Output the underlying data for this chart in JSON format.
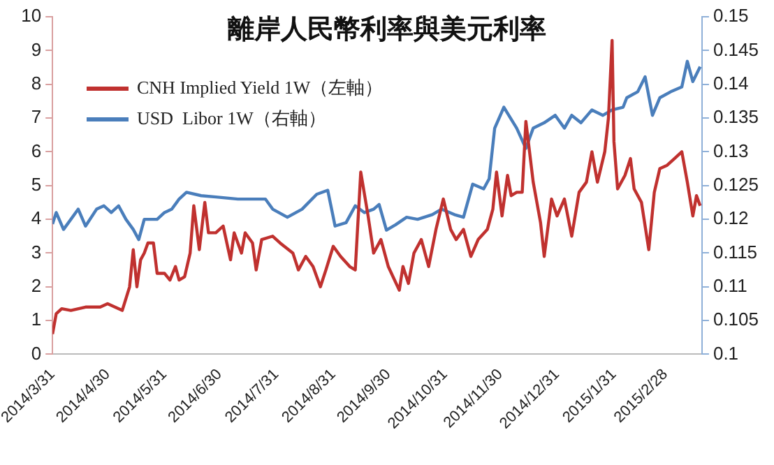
{
  "chart_data": {
    "type": "line",
    "title": "離岸人民幣利率與美元利率",
    "legend": "top left",
    "grid": false,
    "marker": "none",
    "line_style": "solid",
    "xlim": [
      "2014-03-31",
      "2015-03-20"
    ],
    "xticks": [
      {
        "value": "2014-03-31",
        "label": "2014/3/31"
      },
      {
        "value": "2014-04-30",
        "label": "2014/4/30"
      },
      {
        "value": "2014-05-31",
        "label": "2014/5/31"
      },
      {
        "value": "2014-06-30",
        "label": "2014/6/30"
      },
      {
        "value": "2014-07-31",
        "label": "2014/7/31"
      },
      {
        "value": "2014-08-31",
        "label": "2014/8/31"
      },
      {
        "value": "2014-09-30",
        "label": "2014/9/30"
      },
      {
        "value": "2014-10-31",
        "label": "2014/10/31"
      },
      {
        "value": "2014-11-30",
        "label": "2014/11/30"
      },
      {
        "value": "2014-12-31",
        "label": "2014/12/31"
      },
      {
        "value": "2015-01-31",
        "label": "2015/1/31"
      },
      {
        "value": "2015-02-28",
        "label": "2015/2/28"
      }
    ],
    "ylim": [
      0,
      10
    ],
    "yticks": [
      0,
      1,
      2,
      3,
      4,
      5,
      6,
      7,
      8,
      9,
      10
    ],
    "y2lim": [
      0.1,
      0.15
    ],
    "y2ticks": [
      0.1,
      0.105,
      0.11,
      0.115,
      0.12,
      0.125,
      0.13,
      0.135,
      0.14,
      0.145,
      0.15
    ],
    "series": [
      {
        "name": "CNH Implied Yield 1W（左軸）",
        "color": "#c0312f",
        "x": [
          "2014-03-31",
          "2014-04-02",
          "2014-04-05",
          "2014-04-10",
          "2014-04-18",
          "2014-04-26",
          "2014-04-30",
          "2014-05-08",
          "2014-05-12",
          "2014-05-14",
          "2014-05-16",
          "2014-05-18",
          "2014-05-20",
          "2014-05-22",
          "2014-05-25",
          "2014-05-27",
          "2014-05-31",
          "2014-06-03",
          "2014-06-06",
          "2014-06-08",
          "2014-06-11",
          "2014-06-14",
          "2014-06-16",
          "2014-06-19",
          "2014-06-22",
          "2014-06-24",
          "2014-06-28",
          "2014-07-02",
          "2014-07-06",
          "2014-07-08",
          "2014-07-12",
          "2014-07-14",
          "2014-07-18",
          "2014-07-20",
          "2014-07-23",
          "2014-07-29",
          "2014-08-02",
          "2014-08-09",
          "2014-08-12",
          "2014-08-16",
          "2014-08-20",
          "2014-08-24",
          "2014-08-27",
          "2014-08-31",
          "2014-09-04",
          "2014-09-09",
          "2014-09-12",
          "2014-09-15",
          "2014-09-19",
          "2014-09-22",
          "2014-09-26",
          "2014-09-30",
          "2014-10-06",
          "2014-10-08",
          "2014-10-11",
          "2014-10-14",
          "2014-10-18",
          "2014-10-22",
          "2014-10-26",
          "2014-10-30",
          "2014-11-03",
          "2014-11-06",
          "2014-11-10",
          "2014-11-14",
          "2014-11-18",
          "2014-11-23",
          "2014-11-26",
          "2014-11-28",
          "2014-12-01",
          "2014-12-04",
          "2014-12-06",
          "2014-12-09",
          "2014-12-12",
          "2014-12-14",
          "2014-12-18",
          "2014-12-22",
          "2014-12-24",
          "2014-12-28",
          "2014-12-31",
          "2015-01-04",
          "2015-01-08",
          "2015-01-12",
          "2015-01-16",
          "2015-01-19",
          "2015-01-22",
          "2015-01-26",
          "2015-01-28",
          "2015-01-30",
          "2015-01-31",
          "2015-02-02",
          "2015-02-06",
          "2015-02-09",
          "2015-02-11",
          "2015-02-15",
          "2015-02-19",
          "2015-02-22",
          "2015-02-25",
          "2015-03-01",
          "2015-03-05",
          "2015-03-09",
          "2015-03-12",
          "2015-03-15",
          "2015-03-17",
          "2015-03-19"
        ],
        "values": [
          0.6,
          1.2,
          1.35,
          1.3,
          1.4,
          1.4,
          1.5,
          1.3,
          2.0,
          3.1,
          2.0,
          2.8,
          3.0,
          3.3,
          3.3,
          2.4,
          2.4,
          2.2,
          2.6,
          2.2,
          2.3,
          3.0,
          4.4,
          3.1,
          4.5,
          3.6,
          3.6,
          3.8,
          2.8,
          3.6,
          3.0,
          3.6,
          3.3,
          2.5,
          3.4,
          3.5,
          3.3,
          3.0,
          2.5,
          2.9,
          2.6,
          2.0,
          2.5,
          3.2,
          2.9,
          2.6,
          2.5,
          5.4,
          4.1,
          3.0,
          3.4,
          2.6,
          1.9,
          2.6,
          2.1,
          3.0,
          3.4,
          2.6,
          3.7,
          4.6,
          3.7,
          3.4,
          3.7,
          2.9,
          3.4,
          3.7,
          4.3,
          5.4,
          4.1,
          5.3,
          4.7,
          4.8,
          4.8,
          6.9,
          5.1,
          3.9,
          2.9,
          4.6,
          4.1,
          4.6,
          3.5,
          4.8,
          5.1,
          6.0,
          5.1,
          6.0,
          7.0,
          9.3,
          6.3,
          4.9,
          5.3,
          5.8,
          4.9,
          4.5,
          3.1,
          4.8,
          5.5,
          5.6,
          5.8,
          6.0,
          5.1,
          4.1,
          4.7,
          4.4
        ]
      },
      {
        "name": "USD  Libor 1W（右軸）",
        "color": "#4a7ebb",
        "axis": "y2",
        "x": [
          "2014-03-31",
          "2014-04-02",
          "2014-04-06",
          "2014-04-10",
          "2014-04-14",
          "2014-04-18",
          "2014-04-24",
          "2014-04-28",
          "2014-05-02",
          "2014-05-06",
          "2014-05-10",
          "2014-05-14",
          "2014-05-17",
          "2014-05-20",
          "2014-05-27",
          "2014-05-31",
          "2014-06-04",
          "2014-06-08",
          "2014-06-12",
          "2014-06-20",
          "2014-06-28",
          "2014-07-10",
          "2014-07-25",
          "2014-07-29",
          "2014-08-06",
          "2014-08-14",
          "2014-08-22",
          "2014-08-28",
          "2014-09-01",
          "2014-09-07",
          "2014-09-12",
          "2014-09-17",
          "2014-09-22",
          "2014-09-25",
          "2014-09-29",
          "2014-10-04",
          "2014-10-10",
          "2014-10-16",
          "2014-10-24",
          "2014-10-29",
          "2014-11-05",
          "2014-11-10",
          "2014-11-15",
          "2014-11-21",
          "2014-11-24",
          "2014-11-27",
          "2014-12-02",
          "2014-12-09",
          "2014-12-14",
          "2014-12-18",
          "2014-12-24",
          "2014-12-30",
          "2015-01-04",
          "2015-01-08",
          "2015-01-13",
          "2015-01-19",
          "2015-01-25",
          "2015-01-30",
          "2015-02-05",
          "2015-02-07",
          "2015-02-13",
          "2015-02-17",
          "2015-02-21",
          "2015-02-25",
          "2015-03-03",
          "2015-03-09",
          "2015-03-12",
          "2015-03-15",
          "2015-03-19"
        ],
        "values": [
          0.1193,
          0.121,
          0.1185,
          0.12,
          0.1215,
          0.119,
          0.1215,
          0.122,
          0.121,
          0.122,
          0.12,
          0.1185,
          0.117,
          0.12,
          0.12,
          0.121,
          0.1215,
          0.123,
          0.124,
          0.1235,
          0.1233,
          0.123,
          0.123,
          0.1215,
          0.1203,
          0.1215,
          0.1237,
          0.1243,
          0.119,
          0.1195,
          0.122,
          0.121,
          0.1215,
          0.1222,
          0.1184,
          0.1192,
          0.1203,
          0.12,
          0.1207,
          0.1215,
          0.1207,
          0.1203,
          0.1252,
          0.1245,
          0.126,
          0.1335,
          0.1366,
          0.1335,
          0.1305,
          0.1335,
          0.1343,
          0.1354,
          0.1335,
          0.1354,
          0.1343,
          0.1362,
          0.1354,
          0.1362,
          0.1366,
          0.138,
          0.1389,
          0.1411,
          0.1354,
          0.138,
          0.1389,
          0.1396,
          0.1434,
          0.1404,
          0.1426
        ]
      }
    ]
  }
}
